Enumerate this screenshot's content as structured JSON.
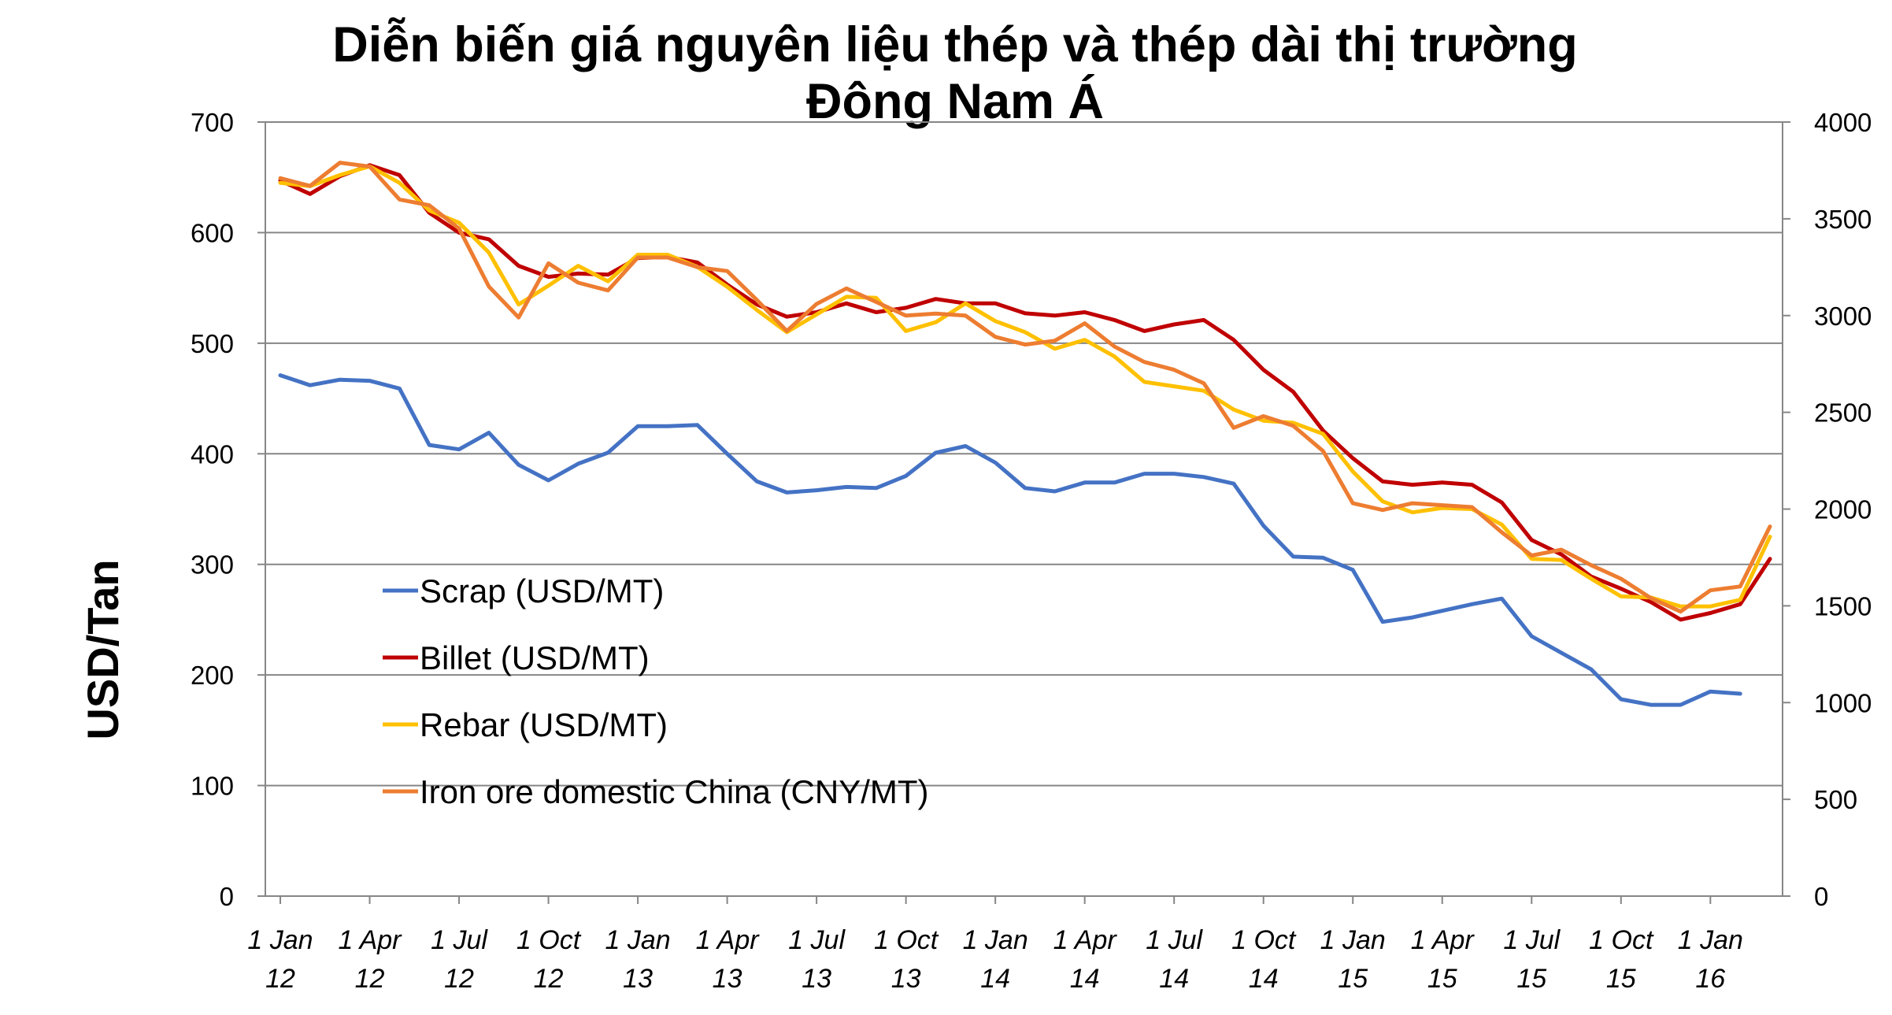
{
  "chart_data": {
    "type": "line",
    "title_line1": "Diễn biến giá nguyên liệu thép và thép dài thị trường",
    "title_line2": "Đông Nam Á",
    "ylabel": "USD/Tan",
    "xlabel": "",
    "ylim": [
      0,
      700
    ],
    "y2lim": [
      0,
      4000
    ],
    "yticks": [
      "0",
      "100",
      "200",
      "300",
      "400",
      "500",
      "600",
      "700"
    ],
    "y2ticks": [
      "0",
      "500",
      "1000",
      "1500",
      "2000",
      "2500",
      "3000",
      "3500",
      "4000"
    ],
    "grid": true,
    "legend_position": "lower-left inside",
    "x_tick_labels": [
      [
        "1 Jan",
        "12"
      ],
      [
        "1 Apr",
        "12"
      ],
      [
        "1 Jul",
        "12"
      ],
      [
        "1 Oct",
        "12"
      ],
      [
        "1 Jan",
        "13"
      ],
      [
        "1 Apr",
        "13"
      ],
      [
        "1 Jul",
        "13"
      ],
      [
        "1 Oct",
        "13"
      ],
      [
        "1 Jan",
        "14"
      ],
      [
        "1 Apr",
        "14"
      ],
      [
        "1 Jul",
        "14"
      ],
      [
        "1 Oct",
        "14"
      ],
      [
        "1 Jan",
        "15"
      ],
      [
        "1 Apr",
        "15"
      ],
      [
        "1 Jul",
        "15"
      ],
      [
        "1 Oct",
        "15"
      ],
      [
        "1 Jan",
        "16"
      ]
    ],
    "x": [
      "2012-01",
      "2012-02",
      "2012-03",
      "2012-04",
      "2012-05",
      "2012-06",
      "2012-07",
      "2012-08",
      "2012-09",
      "2012-10",
      "2012-11",
      "2012-12",
      "2013-01",
      "2013-02",
      "2013-03",
      "2013-04",
      "2013-05",
      "2013-06",
      "2013-07",
      "2013-08",
      "2013-09",
      "2013-10",
      "2013-11",
      "2013-12",
      "2014-01",
      "2014-02",
      "2014-03",
      "2014-04",
      "2014-05",
      "2014-06",
      "2014-07",
      "2014-08",
      "2014-09",
      "2014-10",
      "2014-11",
      "2014-12",
      "2015-01",
      "2015-02",
      "2015-03",
      "2015-04",
      "2015-05",
      "2015-06",
      "2015-07",
      "2015-08",
      "2015-09",
      "2015-10",
      "2015-11",
      "2015-12",
      "2016-01",
      "2016-02",
      "2016-03"
    ],
    "series": [
      {
        "name": "Scrap (USD/MT)",
        "axis": "left",
        "color": "#4472c4",
        "values": [
          471,
          462,
          467,
          466,
          459,
          408,
          404,
          419,
          390,
          376,
          391,
          401,
          425,
          425,
          426,
          400,
          375,
          365,
          367,
          370,
          369,
          380,
          401,
          407,
          392,
          369,
          366,
          374,
          374,
          382,
          382,
          379,
          373,
          335,
          307,
          306,
          295,
          248,
          252,
          258,
          264,
          269,
          235,
          220,
          205,
          178,
          173,
          173,
          185,
          183,
          null
        ]
      },
      {
        "name": "Billet (USD/MT)",
        "axis": "left",
        "color": "#c00000",
        "values": [
          647,
          635,
          651,
          661,
          652,
          618,
          600,
          594,
          570,
          560,
          563,
          562,
          577,
          578,
          573,
          553,
          535,
          524,
          528,
          536,
          528,
          532,
          540,
          536,
          536,
          527,
          525,
          528,
          521,
          511,
          517,
          521,
          503,
          476,
          456,
          421,
          396,
          375,
          372,
          374,
          372,
          356,
          322,
          309,
          289,
          278,
          266,
          250,
          256,
          264,
          305
        ]
      },
      {
        "name": "Rebar (USD/MT)",
        "axis": "left",
        "color": "#ffc000",
        "values": [
          645,
          642,
          652,
          660,
          645,
          620,
          609,
          582,
          535,
          552,
          570,
          556,
          580,
          580,
          569,
          551,
          530,
          510,
          526,
          542,
          541,
          511,
          519,
          536,
          520,
          510,
          495,
          503,
          488,
          465,
          461,
          457,
          440,
          430,
          428,
          418,
          384,
          357,
          347,
          351,
          350,
          336,
          305,
          304,
          287,
          271,
          270,
          262,
          262,
          268,
          325
        ]
      },
      {
        "name": "Iron ore domestic China (CNY/MT)",
        "axis": "right",
        "color": "#ed7d31",
        "values": [
          3710,
          3670,
          3790,
          3770,
          3600,
          3570,
          3450,
          3150,
          2990,
          3270,
          3170,
          3130,
          3300,
          3300,
          3250,
          3230,
          3080,
          2920,
          3060,
          3140,
          3070,
          3000,
          3010,
          3000,
          2890,
          2850,
          2870,
          2960,
          2840,
          2760,
          2720,
          2650,
          2420,
          2480,
          2430,
          2300,
          2030,
          1995,
          2030,
          2020,
          2010,
          1880,
          1760,
          1790,
          1710,
          1640,
          1540,
          1470,
          1580,
          1600,
          1910
        ]
      }
    ]
  }
}
